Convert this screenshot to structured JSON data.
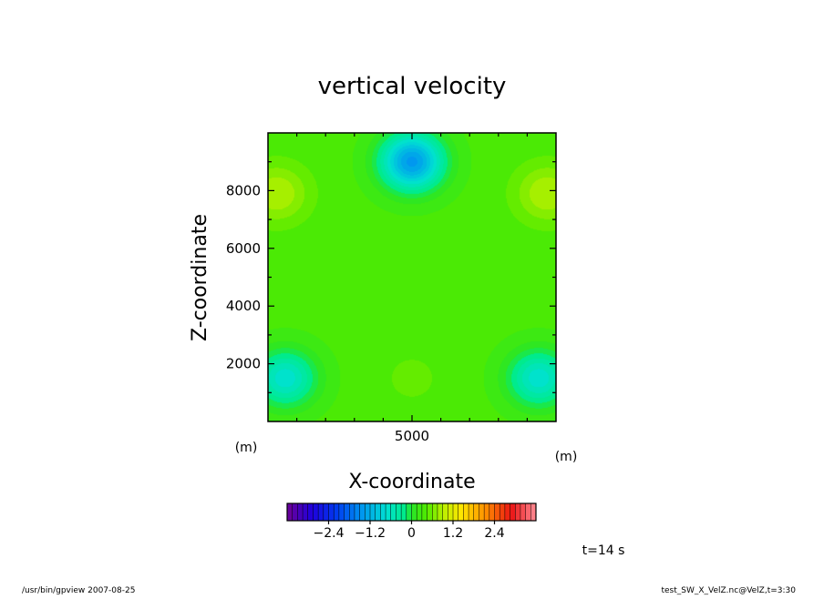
{
  "chart_data": {
    "type": "heatmap",
    "title": "vertical velocity",
    "xlabel": "X-coordinate",
    "ylabel": "Z-coordinate",
    "x_unit": "(m)",
    "y_unit": "(m)",
    "xlim": [
      0,
      10000
    ],
    "ylim": [
      0,
      10000
    ],
    "x_ticks": [
      5000
    ],
    "y_ticks": [
      2000,
      4000,
      6000,
      8000
    ],
    "features": [
      {
        "kind": "min",
        "x": 5000,
        "y": 9000,
        "value": -1.4
      },
      {
        "kind": "max",
        "x": 300,
        "y": 7900,
        "value": 0.9
      },
      {
        "kind": "max",
        "x": 9700,
        "y": 7900,
        "value": 0.9
      },
      {
        "kind": "min",
        "x": 600,
        "y": 1500,
        "value": -0.7
      },
      {
        "kind": "min",
        "x": 9400,
        "y": 1500,
        "value": -0.7
      },
      {
        "kind": "max",
        "x": 5000,
        "y": 1500,
        "value": 0.5
      }
    ],
    "colorbar": {
      "min": -3.6,
      "max": 3.6,
      "levels": 48,
      "tick_values": [
        -2.4,
        -1.2,
        0,
        1.2,
        2.4
      ],
      "tick_labels": [
        "−2.4",
        "−1.2",
        "0",
        "1.2",
        "2.4"
      ]
    },
    "time_label": "t=14 s"
  },
  "footer": {
    "left": "/usr/bin/gpview   2007-08-25",
    "right": "test_SW_X_VelZ.nc@VelZ,t=3:30"
  }
}
